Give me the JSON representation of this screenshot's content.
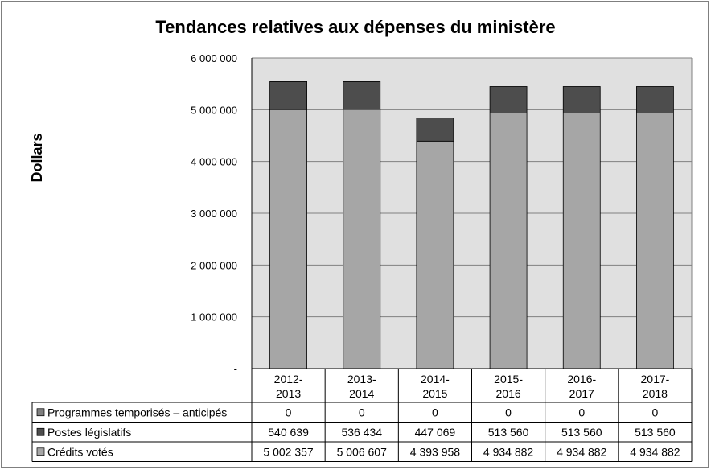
{
  "chart_data": {
    "type": "bar",
    "stacked": true,
    "title": "Tendances relatives aux dépenses du ministère",
    "ylabel": "Dollars",
    "xlabel": "",
    "ylim": [
      0,
      6000000
    ],
    "yticks": [
      0,
      1000000,
      2000000,
      3000000,
      4000000,
      5000000,
      6000000
    ],
    "ytick_labels": [
      "-",
      "1 000 000",
      "2 000 000",
      "3 000 000",
      "4 000 000",
      "5 000 000",
      "6 000 000"
    ],
    "categories": [
      [
        "2012-",
        "2013"
      ],
      [
        "2013-",
        "2014"
      ],
      [
        "2014-",
        "2015"
      ],
      [
        "2015-",
        "2016"
      ],
      [
        "2016-",
        "2017"
      ],
      [
        "2017-",
        "2018"
      ]
    ],
    "grid": true,
    "legend": "data-table-below",
    "series": [
      {
        "name": "Crédits votés",
        "color": "#a6a6a6",
        "values": [
          5002357,
          5006607,
          4393958,
          4934882,
          4934882,
          4934882
        ],
        "labels": [
          "5 002 357",
          "5 006 607",
          "4 393 958",
          "4 934 882",
          "4 934 882",
          "4 934 882"
        ]
      },
      {
        "name": "Postes législatifs",
        "color": "#4d4d4d",
        "values": [
          540639,
          536434,
          447069,
          513560,
          513560,
          513560
        ],
        "labels": [
          "540 639",
          "536 434",
          "447 069",
          "513 560",
          "513 560",
          "513 560"
        ]
      },
      {
        "name": "Programmes temporisés – anticipés",
        "color": "#7f7f7f",
        "values": [
          0,
          0,
          0,
          0,
          0,
          0
        ],
        "labels": [
          "0",
          "0",
          "0",
          "0",
          "0",
          "0"
        ]
      }
    ],
    "table_row_order": [
      2,
      1,
      0
    ]
  }
}
